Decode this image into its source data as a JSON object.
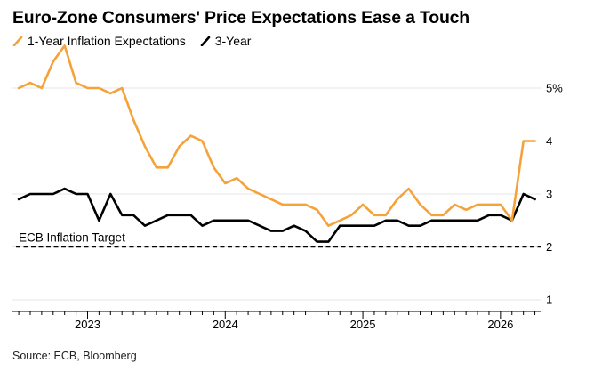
{
  "title": "Euro-Zone Consumers' Price Expectations Ease a Touch",
  "source": "Source: ECB, Bloomberg",
  "colors": {
    "series1": "#f5a23a",
    "series2": "#000000",
    "grid": "#e4e4e4",
    "target": "#000000"
  },
  "chart_data": {
    "type": "line",
    "title": "Euro-Zone Consumers' Price Expectations Ease a Touch",
    "xlabel": "",
    "ylabel": "",
    "ylim": [
      1,
      5
    ],
    "yticks": [
      1,
      2,
      3,
      4,
      5
    ],
    "ytick_labels": [
      "1",
      "2",
      "3",
      "4",
      "5%"
    ],
    "xticks": [
      "2023-01",
      "2024-01",
      "2025-01",
      "2026-01"
    ],
    "xtick_labels": [
      "2023",
      "2024",
      "2025",
      "2026"
    ],
    "grid": true,
    "legend_position": "top-left",
    "x": [
      "2022-07",
      "2022-08",
      "2022-09",
      "2022-10",
      "2022-11",
      "2022-12",
      "2023-01",
      "2023-02",
      "2023-03",
      "2023-04",
      "2023-05",
      "2023-06",
      "2023-07",
      "2023-08",
      "2023-09",
      "2023-10",
      "2023-11",
      "2023-12",
      "2024-01",
      "2024-02",
      "2024-03",
      "2024-04",
      "2024-05",
      "2024-06",
      "2024-07",
      "2024-08",
      "2024-09",
      "2024-10",
      "2024-11",
      "2024-12",
      "2025-01",
      "2025-02",
      "2025-03",
      "2025-04",
      "2025-05",
      "2025-06",
      "2025-07",
      "2025-08",
      "2025-09",
      "2025-10",
      "2025-11",
      "2025-12",
      "2026-01",
      "2026-02",
      "2026-03",
      "2026-04"
    ],
    "series": [
      {
        "name": "1-Year Inflation Expectations",
        "values": [
          5.0,
          5.1,
          5.0,
          5.5,
          5.8,
          5.1,
          5.0,
          5.0,
          4.9,
          5.0,
          4.4,
          3.9,
          3.5,
          3.5,
          3.9,
          4.1,
          4.0,
          3.5,
          3.2,
          3.3,
          3.1,
          3.0,
          2.9,
          2.8,
          2.8,
          2.8,
          2.7,
          2.4,
          2.5,
          2.6,
          2.8,
          2.6,
          2.6,
          2.9,
          3.1,
          2.8,
          2.6,
          2.6,
          2.8,
          2.7,
          2.8,
          2.8,
          2.8,
          2.5,
          4.0,
          4.0
        ]
      },
      {
        "name": "3-Year",
        "values": [
          2.9,
          3.0,
          3.0,
          3.0,
          3.1,
          3.0,
          3.0,
          2.5,
          3.0,
          2.6,
          2.6,
          2.4,
          2.5,
          2.6,
          2.6,
          2.6,
          2.4,
          2.5,
          2.5,
          2.5,
          2.5,
          2.4,
          2.3,
          2.3,
          2.4,
          2.3,
          2.1,
          2.1,
          2.4,
          2.4,
          2.4,
          2.4,
          2.5,
          2.5,
          2.4,
          2.4,
          2.5,
          2.5,
          2.5,
          2.5,
          2.5,
          2.6,
          2.6,
          2.5,
          3.0,
          2.9
        ]
      }
    ],
    "annotations": [
      {
        "text": "ECB Inflation Target",
        "y": 2.0
      }
    ]
  }
}
